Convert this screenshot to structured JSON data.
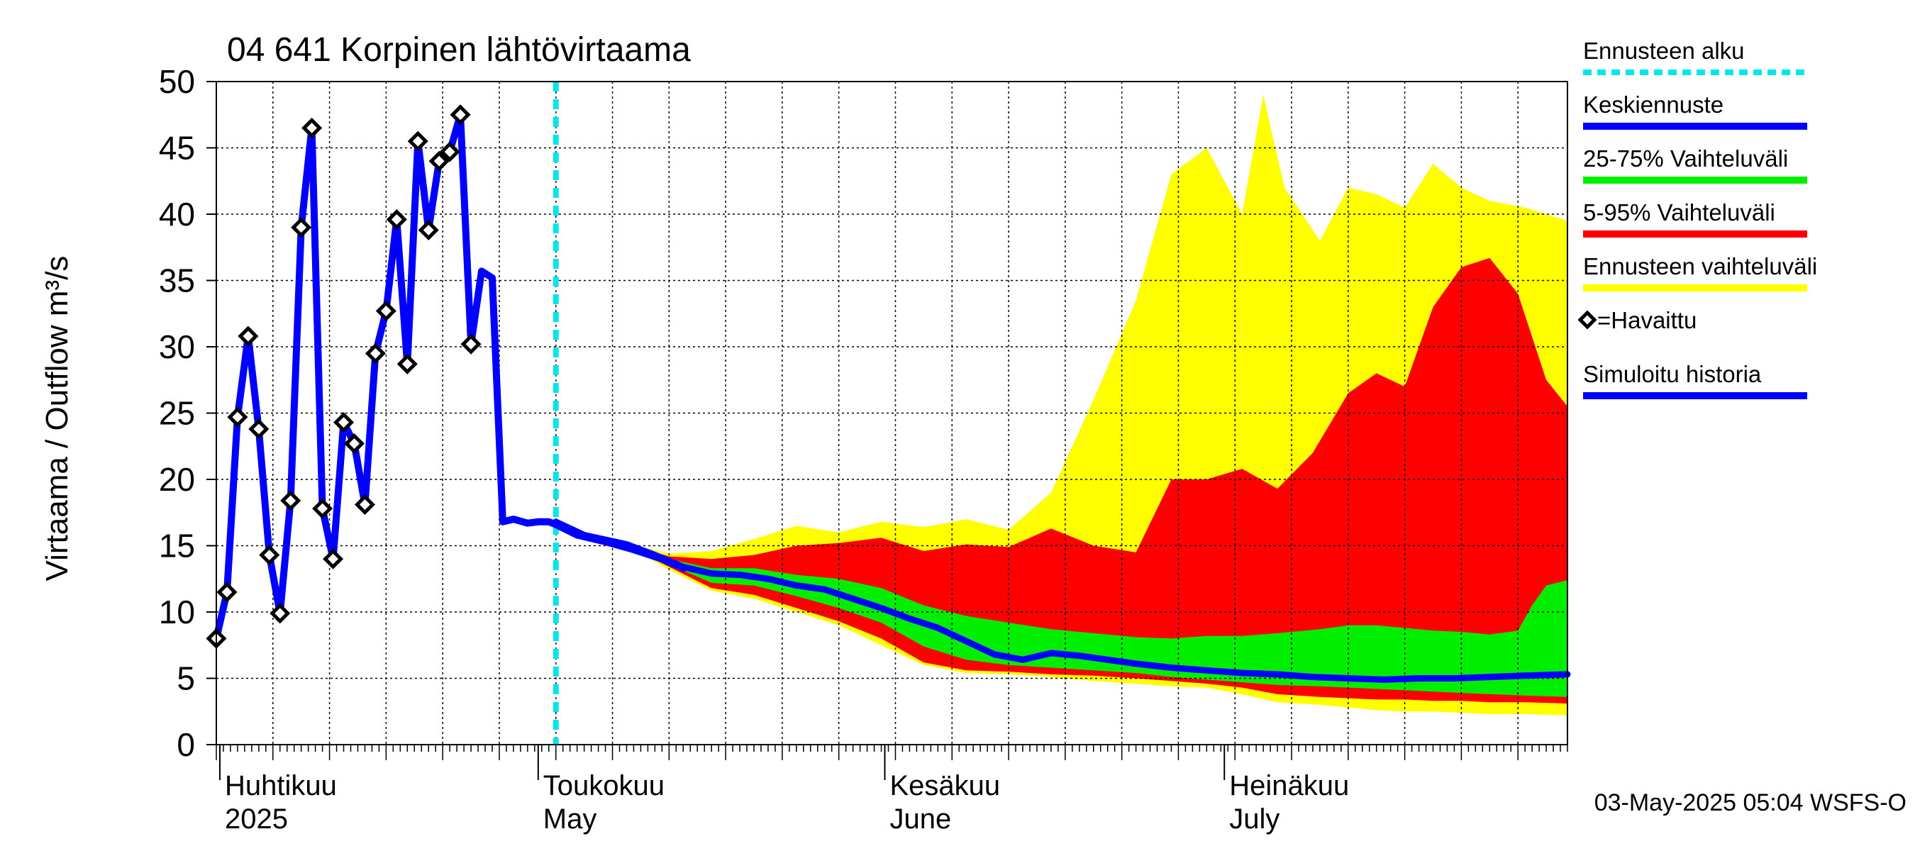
{
  "chart_data": {
    "type": "area",
    "title": "04 641 Korpinen lähtövirtaama",
    "ylabel": "Virtaama / Outflow    m³/s",
    "ylim": [
      0,
      50
    ],
    "yticks": [
      0,
      5,
      10,
      15,
      20,
      25,
      30,
      35,
      40,
      45,
      50
    ],
    "x_range_days": [
      0,
      191
    ],
    "month_labels": [
      {
        "day": 1,
        "fi": "Huhtikuu",
        "en": "2025"
      },
      {
        "day": 46,
        "fi": "Toukokuu",
        "en": "May"
      },
      {
        "day": 95,
        "fi": "Kesäkuu",
        "en": "June"
      },
      {
        "day": 143,
        "fi": "Heinäkuu",
        "en": "July"
      }
    ],
    "forecast_start_day": 48,
    "timestamp": "03-May-2025 05:04 WSFS-O",
    "legend": [
      {
        "key": "forecast_start",
        "label": "Ennusteen alku",
        "color": "#00e5ee",
        "style": "dashed"
      },
      {
        "key": "mean",
        "label": "Keskiennuste",
        "color": "#0000ff",
        "style": "line"
      },
      {
        "key": "p25_75",
        "label": "25-75% Vaihteluväli",
        "color": "#00ee00",
        "style": "line"
      },
      {
        "key": "p5_95",
        "label": "5-95% Vaihteluväli",
        "color": "#ff0000",
        "style": "line"
      },
      {
        "key": "range",
        "label": "Ennusteen vaihteluväli",
        "color": "#ffff00",
        "style": "line"
      },
      {
        "key": "observed",
        "label": "=Havaittu",
        "color": "#000000",
        "style": "marker"
      },
      {
        "key": "simulated",
        "label": "Simuloitu historia",
        "color": "#0000ff",
        "style": "line"
      }
    ],
    "series": [
      {
        "name": "Ennusteen vaihteluväli (max)",
        "x": [
          48,
          52,
          58,
          64,
          70,
          76,
          82,
          88,
          94,
          100,
          106,
          112,
          118,
          124,
          130,
          135,
          140,
          145,
          148,
          151,
          156,
          160,
          164,
          168,
          172,
          176,
          180,
          185,
          191
        ],
        "values": [
          16.6,
          15.9,
          15.2,
          14.4,
          14.6,
          15.5,
          16.5,
          16.0,
          16.8,
          16.4,
          17.0,
          16.2,
          19.0,
          26.0,
          33.5,
          43.0,
          45.0,
          40.0,
          49.0,
          42.0,
          38.0,
          42.0,
          41.5,
          40.5,
          43.8,
          42.0,
          41.0,
          40.5,
          39.5
        ]
      },
      {
        "name": "Ennusteen vaihteluväli (min)",
        "x": [
          48,
          52,
          58,
          64,
          70,
          76,
          82,
          88,
          94,
          100,
          106,
          112,
          118,
          124,
          130,
          135,
          140,
          145,
          150,
          156,
          160,
          164,
          168,
          172,
          176,
          180,
          185,
          191
        ],
        "values": [
          16.6,
          15.8,
          15.0,
          13.2,
          11.6,
          11.0,
          10.0,
          9.0,
          7.5,
          6.0,
          5.4,
          5.3,
          5.1,
          4.8,
          4.6,
          4.4,
          4.3,
          3.8,
          3.2,
          3.0,
          2.8,
          2.6,
          2.5,
          2.5,
          2.4,
          2.3,
          2.3,
          2.2
        ]
      },
      {
        "name": "5-95% Vaihteluväli (upper)",
        "x": [
          48,
          52,
          58,
          64,
          70,
          76,
          82,
          88,
          94,
          100,
          106,
          112,
          118,
          124,
          130,
          135,
          140,
          145,
          150,
          155,
          160,
          164,
          168,
          172,
          176,
          180,
          184,
          188,
          191
        ],
        "values": [
          16.6,
          15.9,
          15.1,
          14.2,
          14.0,
          14.3,
          15.0,
          15.2,
          15.6,
          14.6,
          15.1,
          14.9,
          16.3,
          15.0,
          14.5,
          20.0,
          20.0,
          20.8,
          19.3,
          22.0,
          26.5,
          28.0,
          27.0,
          33.0,
          36.0,
          36.7,
          34.0,
          27.5,
          25.5
        ]
      },
      {
        "name": "5-95% Vaihteluväli (lower)",
        "x": [
          48,
          52,
          58,
          64,
          70,
          76,
          82,
          88,
          94,
          100,
          106,
          112,
          118,
          124,
          130,
          135,
          140,
          145,
          150,
          156,
          160,
          164,
          168,
          172,
          176,
          180,
          185,
          191
        ],
        "values": [
          16.6,
          15.8,
          15.0,
          13.4,
          11.8,
          11.3,
          10.3,
          9.3,
          8.0,
          6.2,
          5.6,
          5.5,
          5.3,
          5.2,
          5.0,
          4.8,
          4.6,
          4.3,
          3.8,
          3.6,
          3.5,
          3.4,
          3.4,
          3.3,
          3.3,
          3.2,
          3.2,
          3.1
        ]
      },
      {
        "name": "25-75% Vaihteluväli (upper)",
        "x": [
          48,
          52,
          58,
          64,
          70,
          76,
          82,
          88,
          94,
          100,
          106,
          112,
          118,
          124,
          130,
          135,
          140,
          145,
          150,
          156,
          160,
          164,
          168,
          172,
          176,
          180,
          184,
          186,
          188,
          191
        ],
        "values": [
          16.6,
          15.9,
          15.1,
          14.0,
          13.3,
          13.3,
          12.8,
          12.5,
          11.8,
          10.5,
          9.7,
          9.2,
          8.7,
          8.4,
          8.1,
          8.0,
          8.2,
          8.2,
          8.4,
          8.7,
          9.0,
          9.0,
          8.8,
          8.6,
          8.5,
          8.3,
          8.6,
          10.5,
          12.0,
          12.4
        ]
      },
      {
        "name": "25-75% Vaihteluväli (lower)",
        "x": [
          48,
          52,
          58,
          64,
          70,
          76,
          82,
          88,
          94,
          100,
          106,
          112,
          118,
          124,
          130,
          135,
          140,
          145,
          150,
          156,
          160,
          164,
          168,
          172,
          176,
          180,
          185,
          191
        ],
        "values": [
          16.6,
          15.8,
          15.0,
          13.6,
          12.2,
          12.0,
          11.2,
          10.3,
          9.2,
          7.4,
          6.4,
          6.0,
          5.8,
          5.6,
          5.4,
          5.1,
          4.9,
          4.7,
          4.5,
          4.4,
          4.3,
          4.2,
          4.1,
          4.0,
          3.9,
          3.8,
          3.7,
          3.6
        ]
      },
      {
        "name": "Keskiennuste",
        "x": [
          48,
          52,
          58,
          62,
          66,
          70,
          74,
          78,
          82,
          86,
          90,
          94,
          98,
          102,
          106,
          110,
          114,
          118,
          122,
          126,
          130,
          135,
          140,
          145,
          150,
          155,
          160,
          165,
          170,
          175,
          180,
          185,
          191
        ],
        "values": [
          16.8,
          15.8,
          15.1,
          14.3,
          13.4,
          12.9,
          12.8,
          12.5,
          12.0,
          11.7,
          11.0,
          10.3,
          9.5,
          8.8,
          7.8,
          6.8,
          6.4,
          6.9,
          6.7,
          6.4,
          6.1,
          5.8,
          5.6,
          5.4,
          5.3,
          5.1,
          5.0,
          4.9,
          5.0,
          5.0,
          5.1,
          5.2,
          5.3
        ]
      },
      {
        "name": "Simuloitu historia",
        "x": [
          0,
          1.5,
          3,
          4.5,
          6,
          7.5,
          9,
          10.5,
          12,
          13.5,
          15,
          16.5,
          18,
          19.5,
          21,
          22.5,
          24,
          25.5,
          27,
          28.5,
          30,
          31.5,
          33,
          34.5,
          36,
          37.5,
          39,
          40.5,
          42,
          44,
          45.5,
          47,
          48,
          51,
          55,
          59,
          63,
          66
        ],
        "values": [
          8.0,
          11.5,
          24.7,
          30.8,
          23.8,
          14.3,
          9.9,
          18.4,
          39.0,
          46.5,
          17.8,
          14.0,
          24.3,
          22.7,
          18.1,
          29.5,
          32.7,
          39.6,
          28.7,
          45.5,
          38.8,
          44.0,
          44.7,
          47.5,
          30.2,
          35.7,
          35.2,
          16.8,
          17.0,
          16.7,
          16.8,
          16.8,
          16.6,
          15.8,
          15.3,
          14.7,
          14.0,
          13.3
        ]
      },
      {
        "name": "Havaittu",
        "x": [
          0,
          1.5,
          3,
          4.5,
          6,
          7.5,
          9,
          10.5,
          12,
          13.5,
          15,
          16.5,
          18,
          19.5,
          21,
          22.5,
          24,
          25.5,
          27,
          28.5,
          30,
          31.5,
          33,
          34.5,
          36
        ],
        "values": [
          8.0,
          11.5,
          24.7,
          30.8,
          23.8,
          14.3,
          9.9,
          18.4,
          39.0,
          46.5,
          17.8,
          14.0,
          24.3,
          22.7,
          18.1,
          29.5,
          32.7,
          39.6,
          28.7,
          45.5,
          38.8,
          44.0,
          44.7,
          47.5,
          30.2
        ]
      }
    ]
  }
}
